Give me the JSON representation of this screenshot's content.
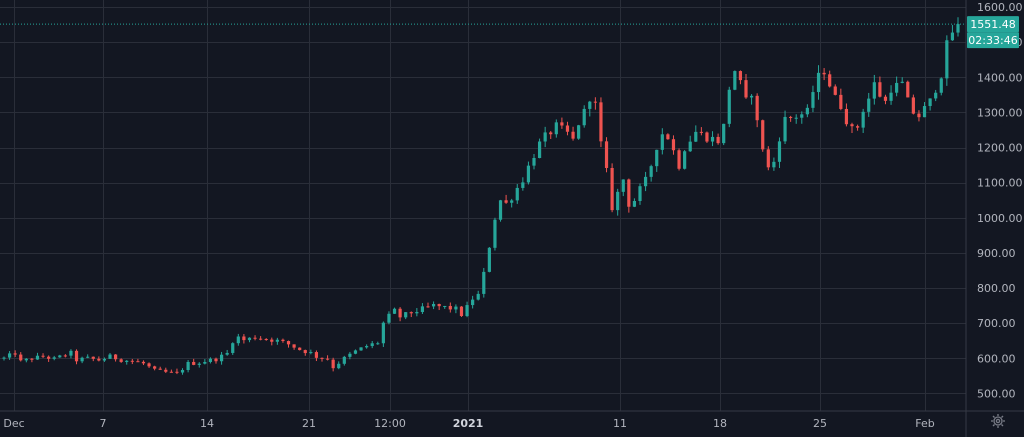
{
  "colors": {
    "background": "#131722",
    "grid": "#2a2e39",
    "up": "#26a69a",
    "down": "#ef5350",
    "price_line": "#26a69a",
    "text": "#b2b5be"
  },
  "icons": {
    "settings": "gear-icon"
  },
  "chart_data": {
    "type": "candlestick",
    "title": "",
    "xlabel": "",
    "ylabel": "",
    "ylim": [
      450,
      1620
    ],
    "grid": true,
    "y_ticks": [
      "1600.00",
      "1500.00",
      "1400.00",
      "1300.00",
      "1200.00",
      "1100.00",
      "1000.00",
      "900.00",
      "800.00",
      "700.00",
      "600.00",
      "500.00"
    ],
    "y_tick_values": [
      1600,
      1500,
      1400,
      1300,
      1200,
      1100,
      1000,
      900,
      800,
      700,
      600,
      500
    ],
    "x_ticks": [
      {
        "label": "Dec",
        "bold": false
      },
      {
        "label": "7",
        "bold": false
      },
      {
        "label": "14",
        "bold": false
      },
      {
        "label": "21",
        "bold": false
      },
      {
        "label": "12:00",
        "bold": false
      },
      {
        "label": "2021",
        "bold": true
      },
      {
        "label": "11",
        "bold": false
      },
      {
        "label": "18",
        "bold": false
      },
      {
        "label": "25",
        "bold": false
      },
      {
        "label": "Feb",
        "bold": false
      }
    ],
    "last_price": 1551.48,
    "last_price_label": "1551.48",
    "countdown_label": "02:33:46",
    "series_path": [
      [
        0,
        600
      ],
      [
        2,
        615
      ],
      [
        3,
        590
      ],
      [
        5,
        600
      ],
      [
        7,
        605
      ],
      [
        9,
        598
      ],
      [
        11,
        610
      ],
      [
        12,
        615
      ],
      [
        13,
        595
      ],
      [
        15,
        600
      ],
      [
        17,
        595
      ],
      [
        19,
        605
      ],
      [
        21,
        596
      ],
      [
        23,
        592
      ],
      [
        25,
        585
      ],
      [
        27,
        565
      ],
      [
        29,
        560
      ],
      [
        31,
        556
      ],
      [
        33,
        585
      ],
      [
        35,
        588
      ],
      [
        36,
        592
      ],
      [
        38,
        598
      ],
      [
        40,
        614
      ],
      [
        41,
        650
      ],
      [
        42,
        660
      ],
      [
        43,
        652
      ],
      [
        45,
        660
      ],
      [
        47,
        655
      ],
      [
        49,
        650
      ],
      [
        51,
        640
      ],
      [
        53,
        625
      ],
      [
        55,
        615
      ],
      [
        56,
        605
      ],
      [
        58,
        598
      ],
      [
        59,
        575
      ],
      [
        61,
        600
      ],
      [
        63,
        620
      ],
      [
        65,
        635
      ],
      [
        67,
        645
      ],
      [
        68,
        700
      ],
      [
        69,
        720
      ],
      [
        70,
        735
      ],
      [
        71,
        718
      ],
      [
        73,
        730
      ],
      [
        75,
        740
      ],
      [
        77,
        750
      ],
      [
        79,
        745
      ],
      [
        81,
        740
      ],
      [
        82,
        725
      ],
      [
        83,
        745
      ],
      [
        84,
        770
      ],
      [
        85,
        780
      ],
      [
        86,
        840
      ],
      [
        87,
        920
      ],
      [
        88,
        1000
      ],
      [
        89,
        1050
      ],
      [
        90,
        1040
      ],
      [
        91,
        1060
      ],
      [
        93,
        1110
      ],
      [
        95,
        1180
      ],
      [
        96,
        1210
      ],
      [
        97,
        1230
      ],
      [
        99,
        1260
      ],
      [
        100,
        1250
      ],
      [
        101,
        1240
      ],
      [
        102,
        1220
      ],
      [
        103,
        1270
      ],
      [
        104,
        1300
      ],
      [
        105,
        1345
      ],
      [
        106,
        1320
      ],
      [
        107,
        1210
      ],
      [
        108,
        1130
      ],
      [
        109,
        1030
      ],
      [
        110,
        1070
      ],
      [
        111,
        1110
      ],
      [
        112,
        1040
      ],
      [
        113,
        1050
      ],
      [
        114,
        1080
      ],
      [
        115,
        1105
      ],
      [
        116,
        1150
      ],
      [
        117,
        1205
      ],
      [
        118,
        1240
      ],
      [
        119,
        1230
      ],
      [
        120,
        1190
      ],
      [
        121,
        1150
      ],
      [
        122,
        1200
      ],
      [
        124,
        1245
      ],
      [
        126,
        1230
      ],
      [
        128,
        1220
      ],
      [
        129,
        1260
      ],
      [
        130,
        1370
      ],
      [
        131,
        1420
      ],
      [
        132,
        1380
      ],
      [
        133,
        1330
      ],
      [
        134,
        1360
      ],
      [
        135,
        1270
      ],
      [
        136,
        1200
      ],
      [
        137,
        1140
      ],
      [
        138,
        1160
      ],
      [
        139,
        1230
      ],
      [
        140,
        1280
      ],
      [
        142,
        1290
      ],
      [
        144,
        1300
      ],
      [
        145,
        1360
      ],
      [
        146,
        1400
      ],
      [
        147,
        1420
      ],
      [
        148,
        1380
      ],
      [
        149,
        1340
      ],
      [
        150,
        1320
      ],
      [
        151,
        1280
      ],
      [
        152,
        1250
      ],
      [
        153,
        1260
      ],
      [
        154,
        1310
      ],
      [
        155,
        1340
      ],
      [
        156,
        1380
      ],
      [
        157,
        1350
      ],
      [
        158,
        1330
      ],
      [
        159,
        1370
      ],
      [
        161,
        1380
      ],
      [
        162,
        1330
      ],
      [
        163,
        1300
      ],
      [
        164,
        1290
      ],
      [
        165,
        1310
      ],
      [
        166,
        1330
      ],
      [
        167,
        1370
      ],
      [
        168,
        1410
      ],
      [
        169,
        1490
      ],
      [
        170,
        1530
      ],
      [
        171,
        1551.48
      ]
    ]
  }
}
